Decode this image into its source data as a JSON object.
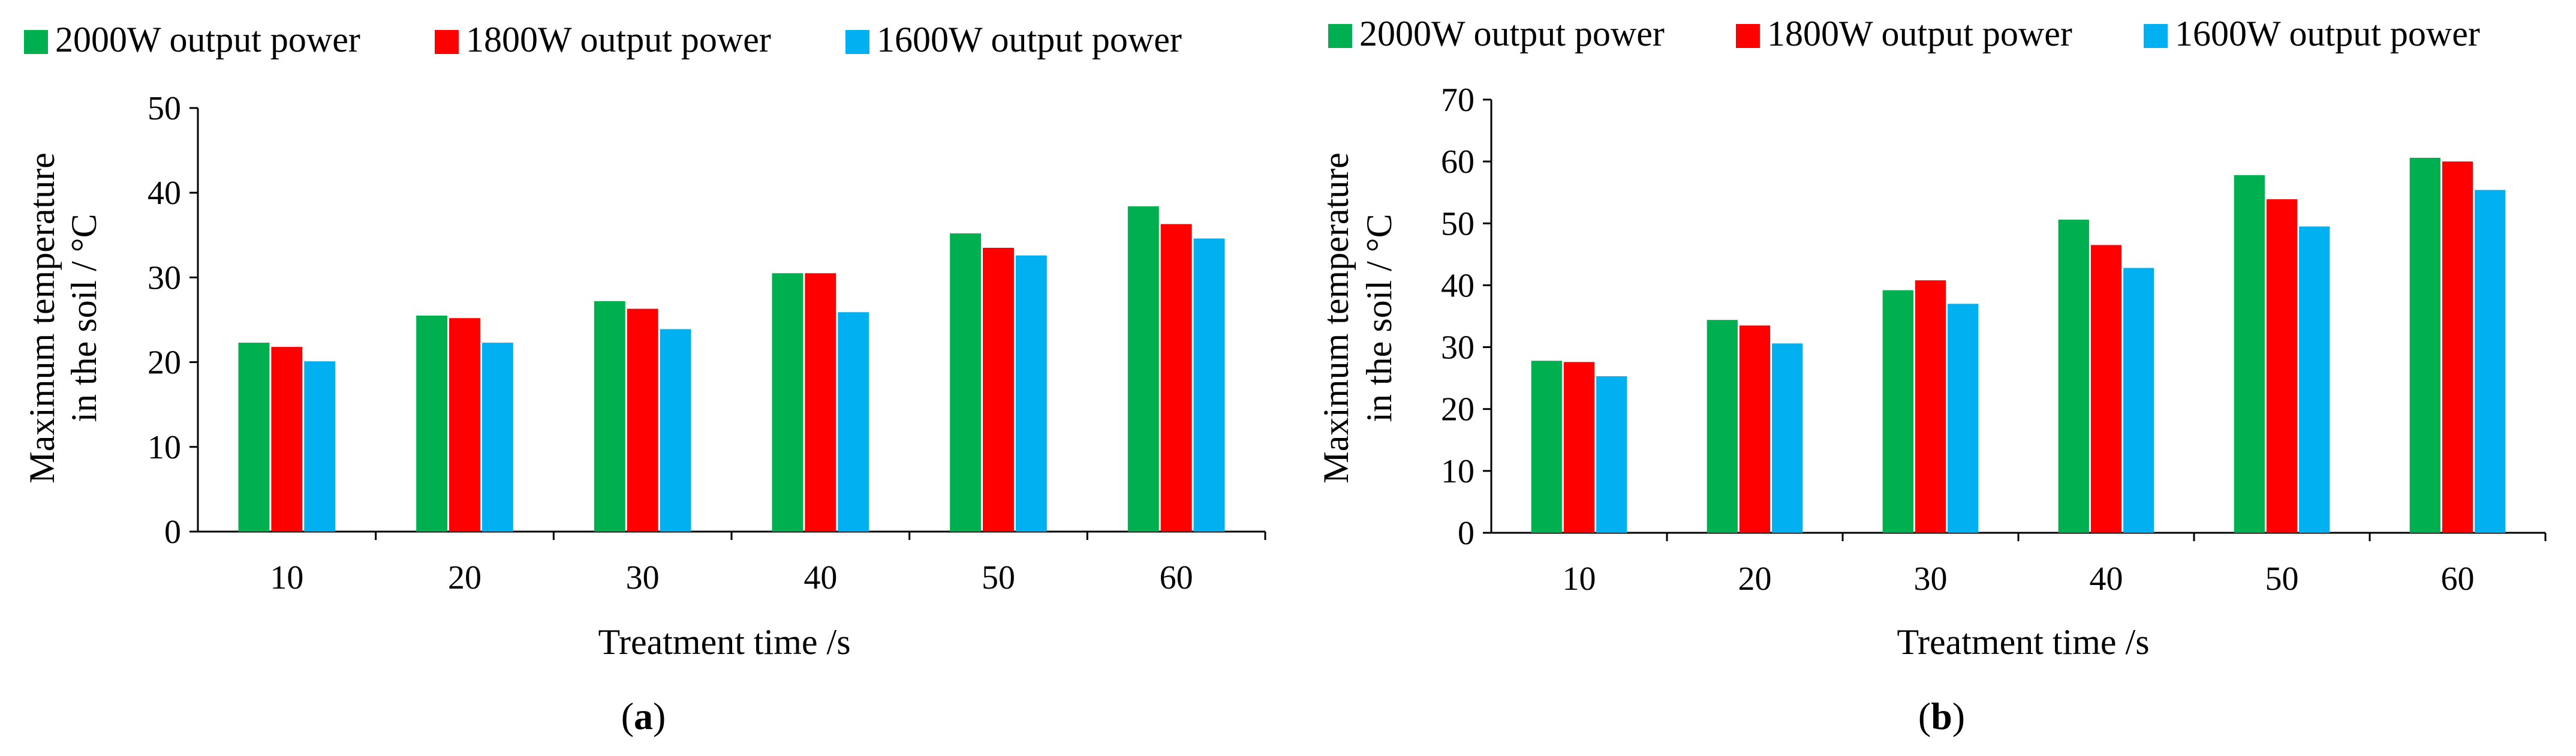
{
  "colors": {
    "2000W output power": "#00B050",
    "1800W output power": "#FF0000",
    "1600W output power": "#00B0F0"
  },
  "chart_data": [
    {
      "panel": "a",
      "caption": "(a)",
      "caption_letter": "a",
      "type": "bar",
      "title": "",
      "xlabel": "Treatment time /s",
      "ylabel_lines": [
        "Maximum temperature",
        "in the soil / °C"
      ],
      "categories": [
        "10",
        "20",
        "30",
        "40",
        "50",
        "60"
      ],
      "ylim": [
        0,
        50
      ],
      "yticks": [
        0,
        10,
        20,
        30,
        40,
        50
      ],
      "legend_position": "top",
      "series": [
        {
          "name": "2000W output power",
          "values": [
            22.3,
            25.5,
            27.2,
            30.5,
            35.2,
            38.4
          ]
        },
        {
          "name": "1800W output power",
          "values": [
            21.8,
            25.2,
            26.3,
            30.5,
            33.5,
            36.3
          ]
        },
        {
          "name": "1600W output power",
          "values": [
            20.1,
            22.3,
            23.9,
            25.9,
            32.6,
            34.6
          ]
        }
      ]
    },
    {
      "panel": "b",
      "caption": "(b)",
      "caption_letter": "b",
      "type": "bar",
      "title": "",
      "xlabel": "Treatment time /s",
      "ylabel_lines": [
        "Maximum temperature",
        "in the soil / °C"
      ],
      "categories": [
        "10",
        "20",
        "30",
        "40",
        "50",
        "60"
      ],
      "ylim": [
        0,
        70
      ],
      "yticks": [
        0,
        10,
        20,
        30,
        40,
        50,
        60,
        70
      ],
      "legend_position": "top",
      "series": [
        {
          "name": "2000W output power",
          "values": [
            27.8,
            34.4,
            39.2,
            50.6,
            57.8,
            60.6
          ]
        },
        {
          "name": "1800W output power",
          "values": [
            27.6,
            33.5,
            40.8,
            46.5,
            53.9,
            60.0
          ]
        },
        {
          "name": "1600W output power",
          "values": [
            25.3,
            30.6,
            37.0,
            42.8,
            49.5,
            55.4
          ]
        }
      ]
    }
  ]
}
